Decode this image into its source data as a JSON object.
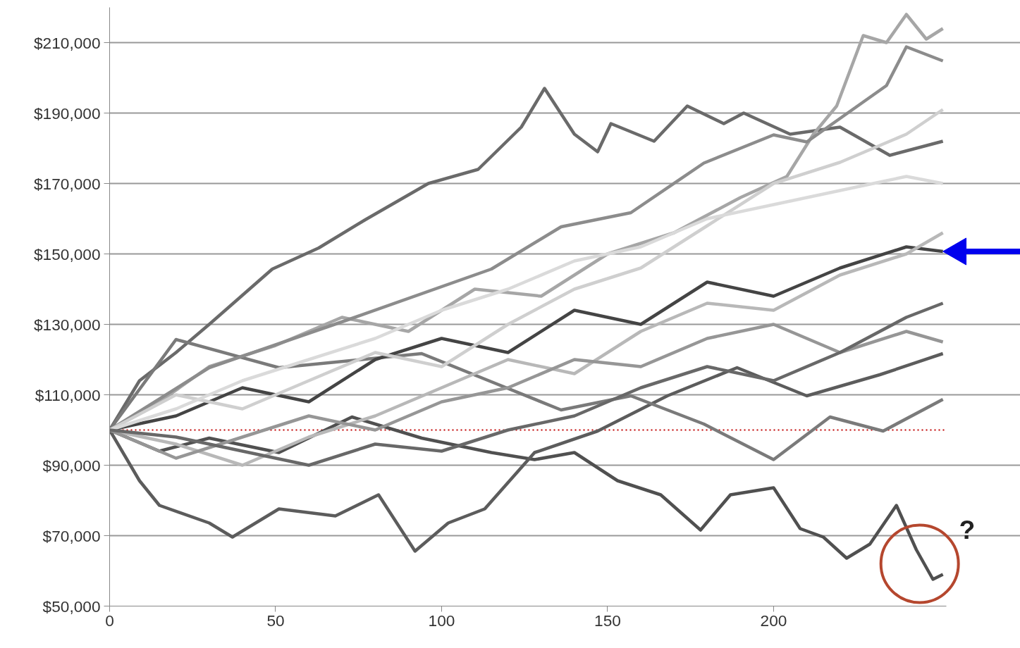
{
  "chart_data": {
    "type": "line",
    "xlim": [
      0,
      252
    ],
    "ylim": [
      50000,
      220000
    ],
    "xticks": [
      0,
      50,
      100,
      150,
      200
    ],
    "yticks": [
      {
        "value": 50000,
        "label": "$50,000"
      },
      {
        "value": 70000,
        "label": "$70,000"
      },
      {
        "value": 90000,
        "label": "$90,000"
      },
      {
        "value": 110000,
        "label": "$110,000"
      },
      {
        "value": 130000,
        "label": "$130,000"
      },
      {
        "value": 150000,
        "label": "$150,000"
      },
      {
        "value": 170000,
        "label": "$170,000"
      },
      {
        "value": 190000,
        "label": "$190,000"
      },
      {
        "value": 210000,
        "label": "$210,000"
      }
    ],
    "grid": "y",
    "marker": "none",
    "line_style": "solid",
    "series": [
      {
        "color": "#6a6a6a",
        "x": [
          0,
          9,
          20,
          30,
          49,
          63,
          77,
          96,
          111,
          124,
          131,
          140,
          147,
          151,
          164,
          174,
          185,
          191,
          205,
          220,
          235,
          251
        ],
        "values": [
          100000,
          114000,
          122000,
          130000,
          145700,
          151700,
          159700,
          170000,
          174000,
          186000,
          197000,
          184000,
          179000,
          187000,
          182000,
          192000,
          187000,
          190000,
          184000,
          186000,
          178000,
          182000
        ]
      },
      {
        "color": "#a6a6a6",
        "x": [
          0,
          15,
          30,
          50,
          70,
          90,
          110,
          130,
          150,
          170,
          190,
          204,
          212,
          219,
          227,
          234,
          240,
          246,
          251
        ],
        "values": [
          100000,
          108000,
          118000,
          124000,
          132000,
          128000,
          140000,
          138000,
          150000,
          156000,
          166000,
          172000,
          184000,
          192000,
          212000,
          210000,
          218000,
          211000,
          214000
        ]
      },
      {
        "color": "#505050",
        "x": [
          0,
          15,
          30,
          51,
          73,
          94,
          115,
          128,
          140,
          153,
          166,
          178,
          187,
          200,
          208,
          215,
          222,
          229,
          237,
          243,
          248,
          251
        ],
        "values": [
          100000,
          94000,
          97700,
          93600,
          103700,
          97700,
          93600,
          91600,
          93600,
          85600,
          81600,
          71600,
          81600,
          83600,
          72000,
          69600,
          63600,
          67600,
          78600,
          66000,
          57600,
          59000
        ]
      },
      {
        "color": "#5c5c5c",
        "x": [
          0,
          9,
          15,
          30,
          37,
          51,
          68,
          81,
          92,
          102,
          113,
          128,
          147,
          168,
          189,
          210,
          232,
          251
        ],
        "values": [
          100000,
          85600,
          78600,
          73600,
          69600,
          77600,
          75600,
          81600,
          65600,
          73600,
          77600,
          93600,
          99700,
          109700,
          117700,
          109700,
          115700,
          121700
        ]
      },
      {
        "color": "#7a7a7a",
        "x": [
          0,
          20,
          51,
          94,
          115,
          136,
          157,
          179,
          200,
          217,
          233,
          251
        ],
        "values": [
          100000,
          125700,
          117700,
          121700,
          113700,
          105700,
          109700,
          101700,
          91600,
          103700,
          99700,
          108700
        ]
      },
      {
        "color": "#444444",
        "x": [
          0,
          20,
          40,
          60,
          80,
          100,
          120,
          140,
          160,
          180,
          200,
          220,
          240,
          251
        ],
        "values": [
          100000,
          104000,
          112000,
          108000,
          120000,
          126000,
          122000,
          134000,
          130000,
          142000,
          138000,
          146000,
          152000,
          150700
        ]
      },
      {
        "color": "#8c8c8c",
        "x": [
          0,
          30,
          73,
          115,
          136,
          157,
          179,
          200,
          210,
          225,
          234,
          240,
          251
        ],
        "values": [
          100000,
          117700,
          131700,
          145700,
          157700,
          161700,
          175800,
          183800,
          181800,
          191800,
          197800,
          208800,
          204800
        ]
      },
      {
        "color": "#cfcfcf",
        "x": [
          0,
          20,
          40,
          60,
          80,
          100,
          120,
          140,
          160,
          180,
          200,
          220,
          240,
          251
        ],
        "values": [
          100000,
          110000,
          106000,
          114000,
          122000,
          118000,
          130000,
          140000,
          146000,
          158000,
          170000,
          176000,
          184000,
          191000
        ]
      },
      {
        "color": "#b8b8b8",
        "x": [
          0,
          20,
          40,
          60,
          80,
          100,
          120,
          140,
          160,
          180,
          200,
          220,
          240,
          251
        ],
        "values": [
          100000,
          96000,
          90000,
          98000,
          104000,
          112000,
          120000,
          116000,
          128000,
          136000,
          134000,
          144000,
          150000,
          156000
        ]
      },
      {
        "color": "#969696",
        "x": [
          0,
          20,
          40,
          60,
          80,
          100,
          120,
          140,
          160,
          180,
          200,
          220,
          240,
          251
        ],
        "values": [
          100000,
          92000,
          98000,
          104000,
          100000,
          108000,
          112000,
          120000,
          118000,
          126000,
          130000,
          122000,
          128000,
          125000
        ]
      },
      {
        "color": "#dadada",
        "x": [
          0,
          20,
          40,
          60,
          80,
          100,
          120,
          140,
          160,
          180,
          200,
          220,
          240,
          251
        ],
        "values": [
          100000,
          106000,
          114000,
          120000,
          126000,
          134000,
          140000,
          148000,
          152000,
          160000,
          164000,
          168000,
          172000,
          170000
        ]
      },
      {
        "color": "#686868",
        "x": [
          0,
          20,
          40,
          60,
          80,
          100,
          120,
          140,
          160,
          180,
          200,
          220,
          240,
          251
        ],
        "values": [
          100000,
          98000,
          94000,
          90000,
          96000,
          94000,
          100000,
          104000,
          112000,
          118000,
          114000,
          122000,
          132000,
          136000
        ]
      }
    ],
    "ref_lines": [
      {
        "axis": "y",
        "value": 100000,
        "color": "#c00000",
        "line_style": "dotted"
      }
    ],
    "annotations": [
      "?"
    ]
  }
}
